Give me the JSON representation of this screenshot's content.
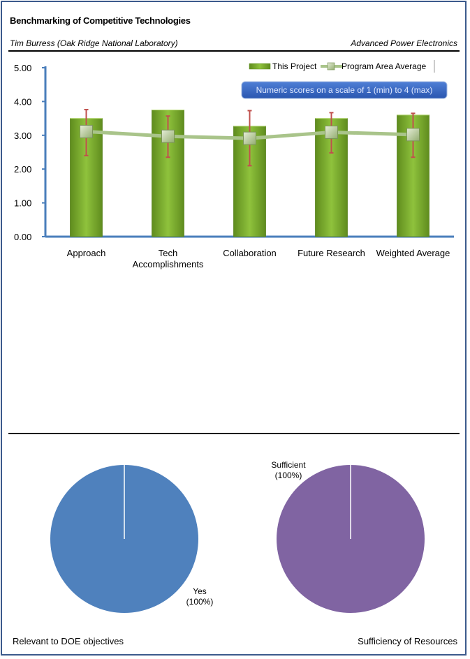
{
  "header": {
    "title": "Benchmarking of Competitive Technologies",
    "author": "Tim Burress (Oak Ridge National Laboratory)",
    "program_area": "Advanced Power Electronics"
  },
  "chart_data": [
    {
      "type": "bar",
      "categories": [
        "Approach",
        "Tech Accomplishments",
        "Collaboration",
        "Future Research",
        "Weighted Average"
      ],
      "category_lines": [
        [
          "Approach"
        ],
        [
          "Tech",
          "Accomplishments"
        ],
        [
          "Collaboration"
        ],
        [
          "Future Research"
        ],
        [
          "Weighted Average"
        ]
      ],
      "series": [
        {
          "name": "This Project",
          "type": "bar",
          "values": [
            3.5,
            3.75,
            3.27,
            3.5,
            3.6
          ]
        },
        {
          "name": "Program Area Average",
          "type": "line",
          "values": [
            3.11,
            2.97,
            2.91,
            3.09,
            3.02
          ],
          "error_low": [
            2.4,
            2.35,
            2.1,
            2.48,
            2.35
          ],
          "error_high": [
            3.76,
            3.57,
            3.73,
            3.67,
            3.65
          ]
        }
      ],
      "ylim": [
        0,
        5
      ],
      "yticks": [
        "0.00",
        "1.00",
        "2.00",
        "3.00",
        "4.00",
        "5.00"
      ],
      "annotation": "Numeric scores on a scale of 1 (min) to 4 (max)",
      "legend_position": "top-right",
      "colors": {
        "bar": "#78a82c",
        "line": "#a9c48a",
        "error": "#c0504d",
        "axis": "#4a7ebb"
      }
    },
    {
      "type": "pie",
      "title": "Relevant to DOE objectives",
      "labels": [
        "Yes"
      ],
      "values": [
        100
      ],
      "data_labels": [
        "(100%)"
      ],
      "colors": [
        "#4f81bd"
      ]
    },
    {
      "type": "pie",
      "title": "Sufficiency of Resources",
      "labels": [
        "Sufficient"
      ],
      "values": [
        100
      ],
      "data_labels": [
        "(100%)"
      ],
      "colors": [
        "#8064a2"
      ]
    }
  ]
}
